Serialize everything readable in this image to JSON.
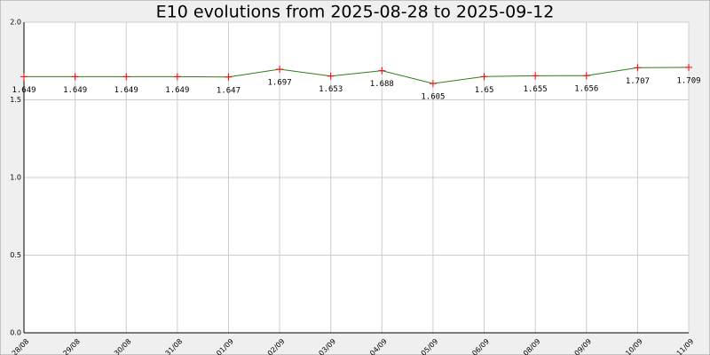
{
  "chart_data": {
    "type": "line",
    "title": "E10 evolutions from 2025-08-28 to 2025-09-12",
    "categories": [
      "28/08",
      "29/08",
      "30/08",
      "31/08",
      "01/09",
      "02/09",
      "03/09",
      "04/09",
      "05/09",
      "06/09",
      "08/09",
      "09/09",
      "10/09",
      "11/09"
    ],
    "values": [
      1.649,
      1.649,
      1.649,
      1.649,
      1.647,
      1.697,
      1.653,
      1.688,
      1.605,
      1.65,
      1.655,
      1.656,
      1.707,
      1.709
    ],
    "color": "#2e7d1e",
    "marker_color": "#ff0000",
    "ylim": [
      0,
      2
    ],
    "yticks": [
      {
        "value": 0,
        "label": "0.0"
      },
      {
        "value": 0.5,
        "label": "0.5"
      },
      {
        "value": 1,
        "label": "1.0"
      },
      {
        "value": 1.5,
        "label": "1.5"
      },
      {
        "value": 2,
        "label": "2.0"
      }
    ],
    "grid": true
  }
}
